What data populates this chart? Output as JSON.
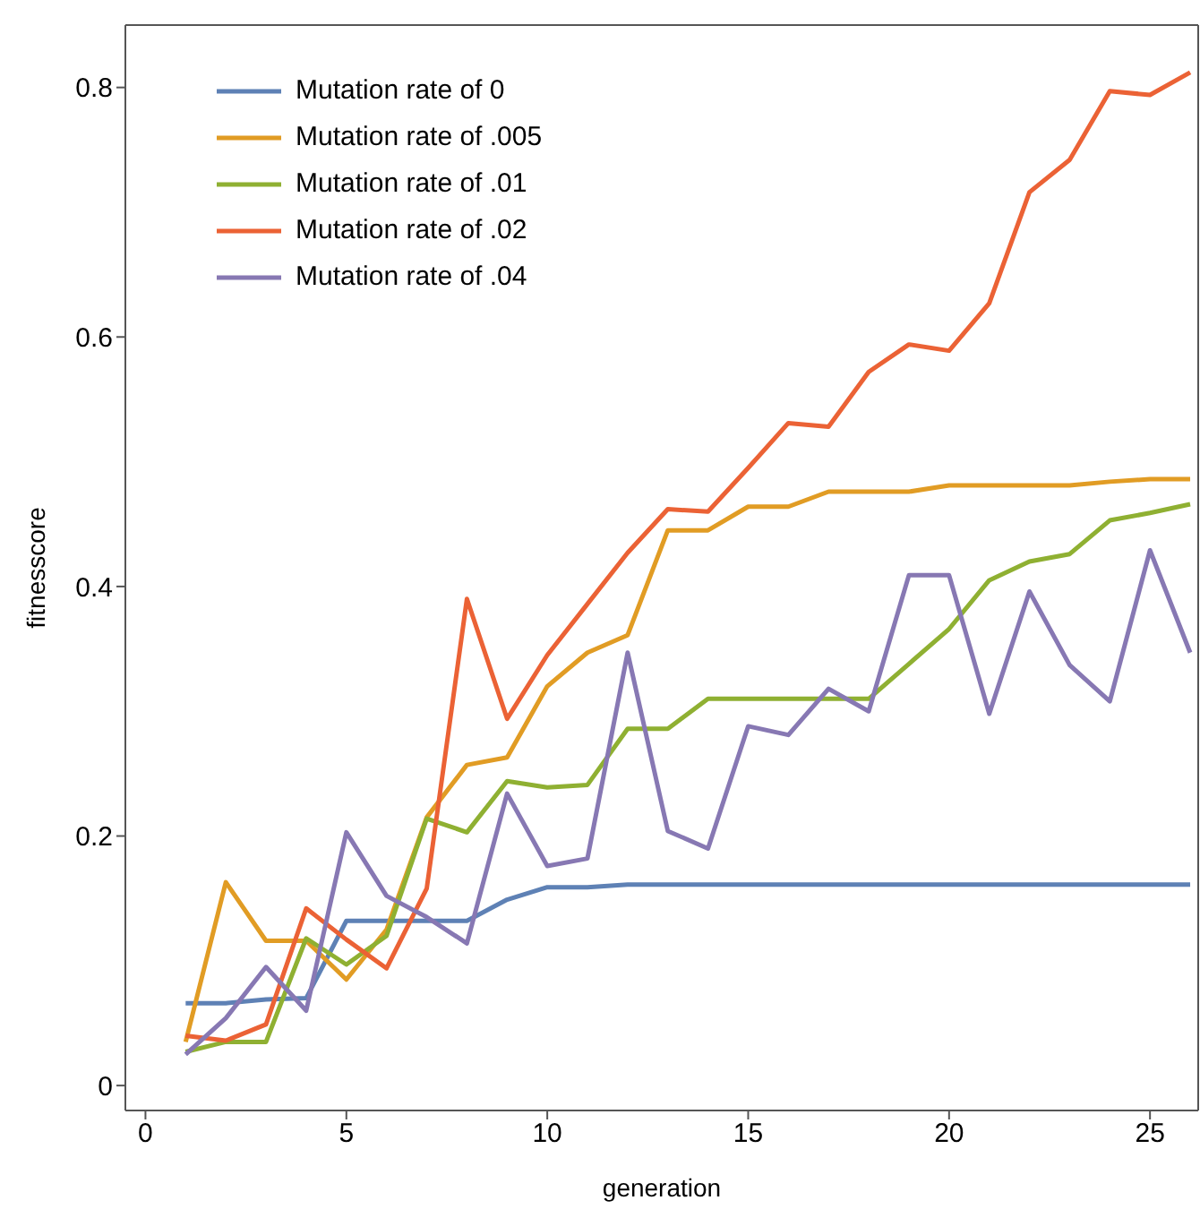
{
  "chart_data": {
    "type": "line",
    "xlabel": "generation",
    "ylabel": "fitnesscore",
    "x": [
      1,
      2,
      3,
      4,
      5,
      6,
      7,
      8,
      9,
      10,
      11,
      12,
      13,
      14,
      15,
      16,
      17,
      18,
      19,
      20,
      21,
      22,
      23,
      24,
      25,
      26
    ],
    "xlim": [
      -0.5,
      26.2
    ],
    "xticks": [
      0,
      5,
      10,
      15,
      20,
      25
    ],
    "ylim": [
      -0.02,
      0.85
    ],
    "yticks": [
      0,
      0.2,
      0.4,
      0.6,
      0.8
    ],
    "grid": false,
    "legend": "top left",
    "marker": "none",
    "line_style": "solid",
    "series": [
      {
        "name": "Mutation rate of 0",
        "color": "#5e81b5",
        "values": [
          0.066,
          0.066,
          0.069,
          0.07,
          0.132,
          0.132,
          0.132,
          0.132,
          0.149,
          0.159,
          0.159,
          0.161,
          0.161,
          0.161,
          0.161,
          0.161,
          0.161,
          0.161,
          0.161,
          0.161,
          0.161,
          0.161,
          0.161,
          0.161,
          0.161,
          0.161
        ]
      },
      {
        "name": "Mutation rate of .005",
        "color": "#e19c24",
        "values": [
          0.035,
          0.163,
          0.116,
          0.116,
          0.085,
          0.125,
          0.215,
          0.257,
          0.263,
          0.32,
          0.347,
          0.361,
          0.445,
          0.445,
          0.464,
          0.464,
          0.476,
          0.476,
          0.476,
          0.481,
          0.481,
          0.481,
          0.481,
          0.484,
          0.486,
          0.486
        ]
      },
      {
        "name": "Mutation rate of .01",
        "color": "#8fb032",
        "values": [
          0.027,
          0.035,
          0.035,
          0.118,
          0.097,
          0.12,
          0.214,
          0.203,
          0.244,
          0.239,
          0.241,
          0.286,
          0.286,
          0.31,
          0.31,
          0.31,
          0.31,
          0.31,
          0.338,
          0.366,
          0.405,
          0.42,
          0.426,
          0.453,
          0.459,
          0.466
        ]
      },
      {
        "name": "Mutation rate of .02",
        "color": "#eb6235",
        "values": [
          0.04,
          0.036,
          0.049,
          0.142,
          0.117,
          0.094,
          0.158,
          0.39,
          0.294,
          0.345,
          0.386,
          0.427,
          0.462,
          0.46,
          0.495,
          0.531,
          0.528,
          0.572,
          0.594,
          0.589,
          0.627,
          0.716,
          0.742,
          0.797,
          0.794,
          0.812
        ]
      },
      {
        "name": "Mutation rate of .04",
        "color": "#8778b3",
        "values": [
          0.025,
          0.054,
          0.095,
          0.06,
          0.203,
          0.152,
          0.135,
          0.114,
          0.234,
          0.176,
          0.182,
          0.347,
          0.204,
          0.19,
          0.288,
          0.281,
          0.318,
          0.3,
          0.409,
          0.409,
          0.298,
          0.396,
          0.337,
          0.308,
          0.429,
          0.347
        ]
      }
    ]
  }
}
